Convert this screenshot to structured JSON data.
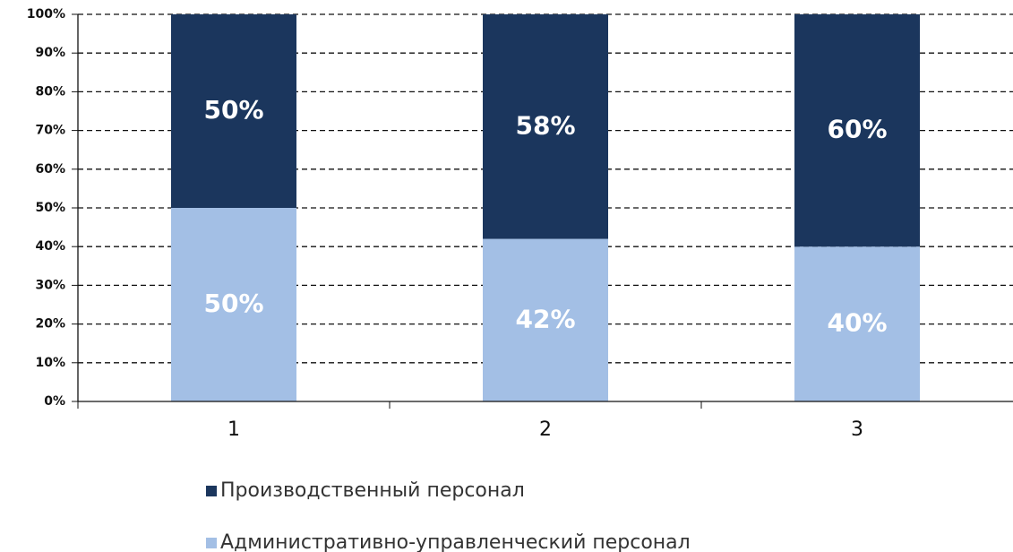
{
  "chart_data": {
    "type": "stacked_bar",
    "categories": [
      "1",
      "2",
      "3"
    ],
    "series": [
      {
        "name": "Административно-управленческий персонал",
        "color": "#a3bfe5",
        "values": [
          50,
          42,
          40
        ],
        "value_labels": [
          "50%",
          "42%",
          "40%"
        ]
      },
      {
        "name": "Производственный персонал",
        "color": "#1b365d",
        "values": [
          50,
          58,
          60
        ],
        "value_labels": [
          "50%",
          "58%",
          "60%"
        ]
      }
    ],
    "ylim": [
      0,
      100
    ],
    "yticks": [
      {
        "value": 0,
        "label": "0%"
      },
      {
        "value": 10,
        "label": "10%"
      },
      {
        "value": 20,
        "label": "20%"
      },
      {
        "value": 30,
        "label": "30%"
      },
      {
        "value": 40,
        "label": "40%"
      },
      {
        "value": 50,
        "label": "50%"
      },
      {
        "value": 60,
        "label": "60%"
      },
      {
        "value": 70,
        "label": "70%"
      },
      {
        "value": 80,
        "label": "80%"
      },
      {
        "value": 90,
        "label": "90%"
      },
      {
        "value": 100,
        "label": "100%"
      }
    ],
    "grid": true
  }
}
